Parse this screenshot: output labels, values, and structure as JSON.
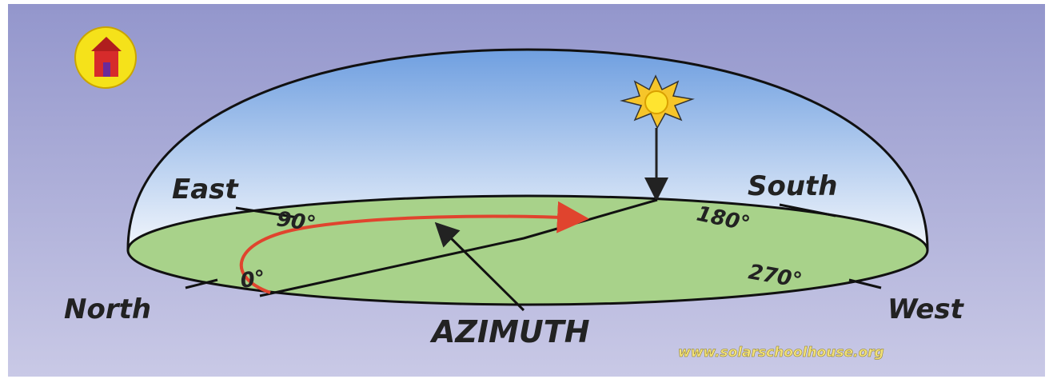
{
  "directions": {
    "east": "East",
    "south": "South",
    "north": "North",
    "west": "West"
  },
  "degrees": {
    "north": "0°",
    "east": "90°",
    "south": "180°",
    "west": "270°"
  },
  "label": "AZIMUTH",
  "website": "www.solarschoolhouse.org"
}
